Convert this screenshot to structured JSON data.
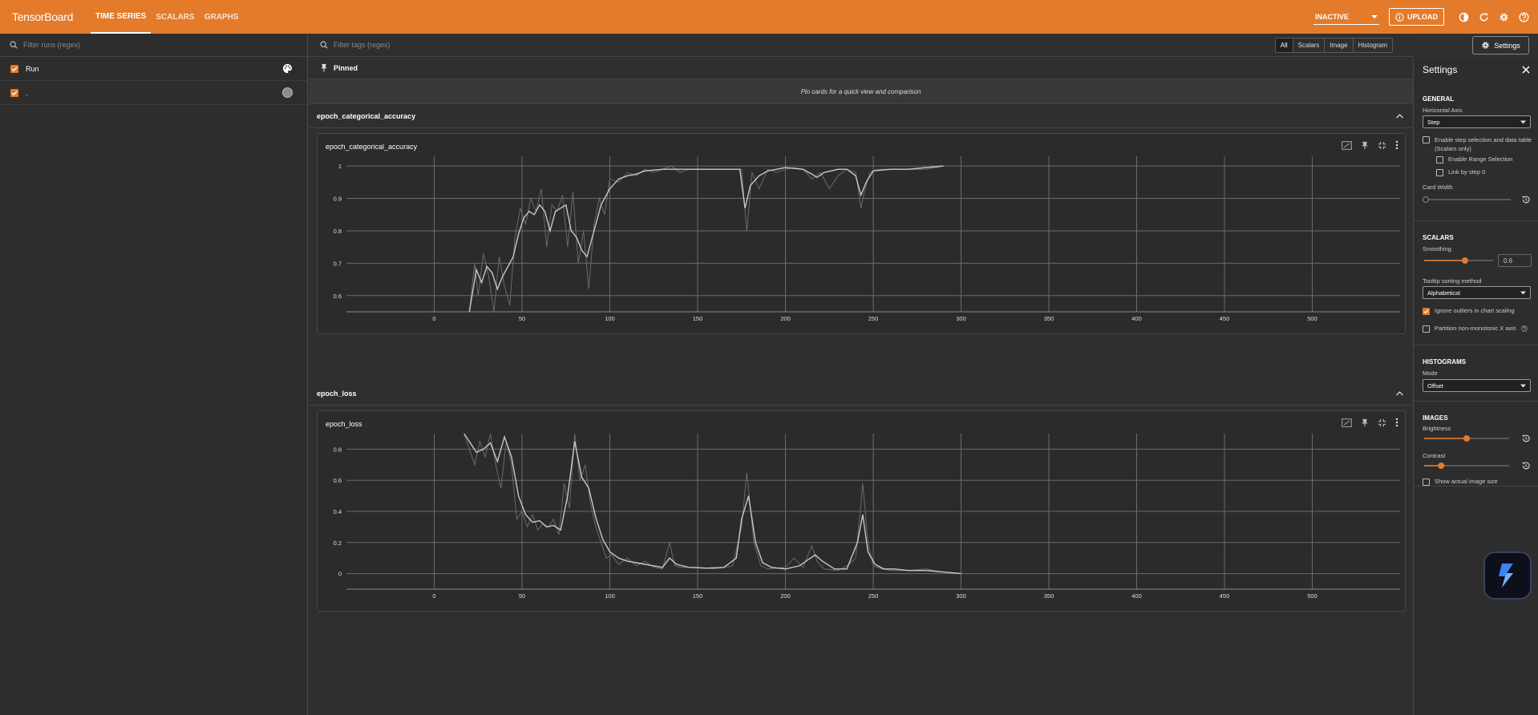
{
  "header": {
    "brand": "TensorBoard",
    "tabs": [
      {
        "label": "TIME SERIES",
        "active": true
      },
      {
        "label": "SCALARS",
        "active": false
      },
      {
        "label": "GRAPHS",
        "active": false
      }
    ],
    "status_select": "INACTIVE",
    "upload_label": "UPLOAD",
    "accent_color": "#e37b2b"
  },
  "runs_panel": {
    "filter_placeholder": "Filter runs (regex)",
    "header_label": "Run",
    "runs": [
      {
        "label": ".",
        "checked": true
      }
    ]
  },
  "main": {
    "tag_filter_placeholder": "Filter tags (regex)",
    "type_buttons": [
      "All",
      "Scalars",
      "Image",
      "Histogram"
    ],
    "active_type": "All",
    "settings_button": "Settings",
    "pinned": {
      "title": "Pinned",
      "empty_message": "Pin cards for a quick view and comparison"
    },
    "groups": [
      {
        "name": "epoch_categorical_accuracy",
        "card_title": "epoch_categorical_accuracy"
      },
      {
        "name": "epoch_loss",
        "card_title": "epoch_loss"
      }
    ]
  },
  "settings": {
    "title": "Settings",
    "general": {
      "heading": "GENERAL",
      "horizontal_axis_label": "Horizontal Axis",
      "horizontal_axis_value": "Step",
      "step_selection_label": "Enable step selection and data table",
      "step_selection_sub": "(Scalars only)",
      "range_selection_label": "Enable Range Selection",
      "link_step_label": "Link by step 0",
      "card_width_label": "Card Width"
    },
    "scalars": {
      "heading": "SCALARS",
      "smoothing_label": "Smoothing",
      "smoothing_value": "0.6",
      "tooltip_sort_label": "Tooltip sorting method",
      "tooltip_sort_value": "Alphabetical",
      "ignore_outliers_label": "Ignore outliers in chart scaling",
      "ignore_outliers_checked": true,
      "partition_label": "Partition non-monotonic X axis"
    },
    "histograms": {
      "heading": "HISTOGRAMS",
      "mode_label": "Mode",
      "mode_value": "Offset"
    },
    "images": {
      "heading": "IMAGES",
      "brightness_label": "Brightness",
      "contrast_label": "Contrast",
      "actual_size_label": "Show actual image size",
      "brightness_level": 0.5,
      "contrast_level": 0.2
    }
  },
  "chart_data": [
    {
      "type": "line",
      "xlabel": "",
      "ylabel": "",
      "xlim": [
        -50,
        550
      ],
      "ylim": [
        0.55,
        1.03
      ],
      "x_ticks": [
        0,
        50,
        100,
        150,
        200,
        250,
        300,
        350,
        400,
        450,
        500
      ],
      "y_ticks": [
        0.6,
        0.7,
        0.8,
        0.9,
        1
      ],
      "y_tick_labels": [
        "0.6",
        "0.7",
        "0.8",
        "0.9",
        "1"
      ],
      "grid": true,
      "series": [
        {
          "role": "raw",
          "color": "#6a6a6a",
          "x": [
            20,
            23,
            25,
            28,
            31,
            34,
            37,
            40,
            43,
            46,
            49,
            52,
            55,
            58,
            61,
            64,
            67,
            70,
            73,
            76,
            79,
            82,
            85,
            88,
            91,
            94,
            97,
            100,
            105,
            110,
            115,
            120,
            125,
            130,
            135,
            140,
            145,
            150,
            160,
            170,
            175,
            178,
            181,
            185,
            190,
            195,
            200,
            205,
            210,
            215,
            220,
            225,
            230,
            235,
            240,
            243,
            245,
            248,
            252,
            260,
            270,
            280,
            290
          ],
          "y": [
            0.55,
            0.7,
            0.6,
            0.73,
            0.66,
            0.55,
            0.72,
            0.63,
            0.57,
            0.78,
            0.87,
            0.82,
            0.9,
            0.86,
            0.93,
            0.75,
            0.88,
            0.86,
            0.91,
            0.75,
            0.92,
            0.7,
            0.8,
            0.62,
            0.82,
            0.9,
            0.85,
            0.96,
            0.95,
            0.98,
            0.97,
            0.99,
            0.98,
            0.99,
            1.0,
            0.98,
            0.99,
            0.99,
            0.99,
            0.99,
            0.99,
            0.8,
            0.98,
            0.93,
            0.99,
            0.98,
            0.99,
            0.995,
            0.99,
            0.96,
            0.98,
            0.93,
            0.97,
            0.99,
            0.98,
            0.87,
            0.92,
            0.98,
            0.99,
            0.99,
            0.99,
            0.99,
            1.0
          ]
        },
        {
          "role": "smoothed",
          "color": "#c8c8c8",
          "x": [
            20,
            24,
            27,
            30,
            33,
            36,
            39,
            42,
            45,
            48,
            51,
            54,
            57,
            60,
            63,
            66,
            69,
            72,
            75,
            78,
            81,
            84,
            87,
            90,
            95,
            100,
            105,
            110,
            115,
            120,
            130,
            140,
            150,
            160,
            170,
            174,
            177,
            180,
            185,
            190,
            195,
            200,
            210,
            215,
            218,
            222,
            230,
            235,
            240,
            243,
            246,
            250,
            260,
            270,
            280,
            290
          ],
          "y": [
            0.55,
            0.68,
            0.64,
            0.69,
            0.67,
            0.62,
            0.66,
            0.69,
            0.72,
            0.79,
            0.84,
            0.86,
            0.85,
            0.88,
            0.86,
            0.8,
            0.86,
            0.87,
            0.88,
            0.8,
            0.78,
            0.74,
            0.72,
            0.78,
            0.88,
            0.93,
            0.96,
            0.97,
            0.975,
            0.985,
            0.99,
            0.99,
            0.99,
            0.99,
            0.99,
            0.99,
            0.87,
            0.94,
            0.97,
            0.985,
            0.99,
            0.995,
            0.99,
            0.975,
            0.965,
            0.98,
            0.99,
            0.99,
            0.97,
            0.91,
            0.95,
            0.985,
            0.99,
            0.99,
            0.995,
            1.0
          ]
        }
      ]
    },
    {
      "type": "line",
      "xlabel": "",
      "ylabel": "",
      "xlim": [
        -50,
        550
      ],
      "ylim": [
        -0.1,
        0.9
      ],
      "x_ticks": [
        0,
        50,
        100,
        150,
        200,
        250,
        300,
        350,
        400,
        450,
        500
      ],
      "y_ticks": [
        0,
        0.2,
        0.4,
        0.6,
        0.8
      ],
      "y_tick_labels": [
        "0",
        "0.2",
        "0.4",
        "0.6",
        "0.8"
      ],
      "grid": true,
      "series": [
        {
          "role": "raw",
          "color": "#6a6a6a",
          "x": [
            17,
            20,
            23,
            26,
            29,
            32,
            35,
            38,
            41,
            44,
            47,
            50,
            53,
            56,
            59,
            62,
            65,
            68,
            71,
            74,
            77,
            80,
            83,
            86,
            89,
            92,
            95,
            98,
            101,
            105,
            110,
            115,
            120,
            125,
            130,
            134,
            137,
            140,
            150,
            160,
            170,
            175,
            178,
            182,
            186,
            190,
            200,
            205,
            210,
            215,
            218,
            222,
            230,
            235,
            240,
            244,
            247,
            250,
            255,
            260,
            270,
            280,
            290,
            300
          ],
          "y": [
            0.9,
            0.8,
            0.7,
            0.85,
            0.75,
            0.9,
            0.7,
            0.55,
            0.85,
            0.7,
            0.35,
            0.4,
            0.3,
            0.38,
            0.28,
            0.32,
            0.3,
            0.35,
            0.25,
            0.58,
            0.42,
            0.9,
            0.6,
            0.7,
            0.45,
            0.3,
            0.2,
            0.1,
            0.12,
            0.06,
            0.1,
            0.05,
            0.08,
            0.04,
            0.03,
            0.2,
            0.05,
            0.04,
            0.04,
            0.03,
            0.05,
            0.3,
            0.65,
            0.2,
            0.05,
            0.03,
            0.04,
            0.1,
            0.04,
            0.18,
            0.08,
            0.03,
            0.02,
            0.05,
            0.1,
            0.58,
            0.2,
            0.05,
            0.03,
            0.02,
            0.02,
            0.03,
            0.01,
            0.0
          ]
        },
        {
          "role": "smoothed",
          "color": "#c8c8c8",
          "x": [
            17,
            20,
            24,
            28,
            32,
            36,
            40,
            44,
            48,
            52,
            56,
            60,
            64,
            68,
            72,
            76,
            80,
            84,
            88,
            92,
            96,
            100,
            105,
            110,
            115,
            120,
            125,
            130,
            134,
            138,
            145,
            155,
            165,
            172,
            175,
            179,
            183,
            187,
            192,
            200,
            208,
            213,
            217,
            221,
            228,
            235,
            241,
            244,
            247,
            251,
            256,
            262,
            270,
            280,
            290,
            300
          ],
          "y": [
            0.9,
            0.85,
            0.78,
            0.8,
            0.84,
            0.72,
            0.88,
            0.75,
            0.5,
            0.38,
            0.33,
            0.34,
            0.3,
            0.31,
            0.28,
            0.5,
            0.85,
            0.62,
            0.55,
            0.36,
            0.22,
            0.14,
            0.1,
            0.08,
            0.07,
            0.06,
            0.05,
            0.04,
            0.1,
            0.06,
            0.04,
            0.035,
            0.04,
            0.1,
            0.35,
            0.5,
            0.2,
            0.07,
            0.04,
            0.03,
            0.05,
            0.09,
            0.12,
            0.08,
            0.03,
            0.03,
            0.2,
            0.38,
            0.14,
            0.06,
            0.03,
            0.03,
            0.02,
            0.02,
            0.01,
            0.0
          ]
        }
      ]
    }
  ]
}
